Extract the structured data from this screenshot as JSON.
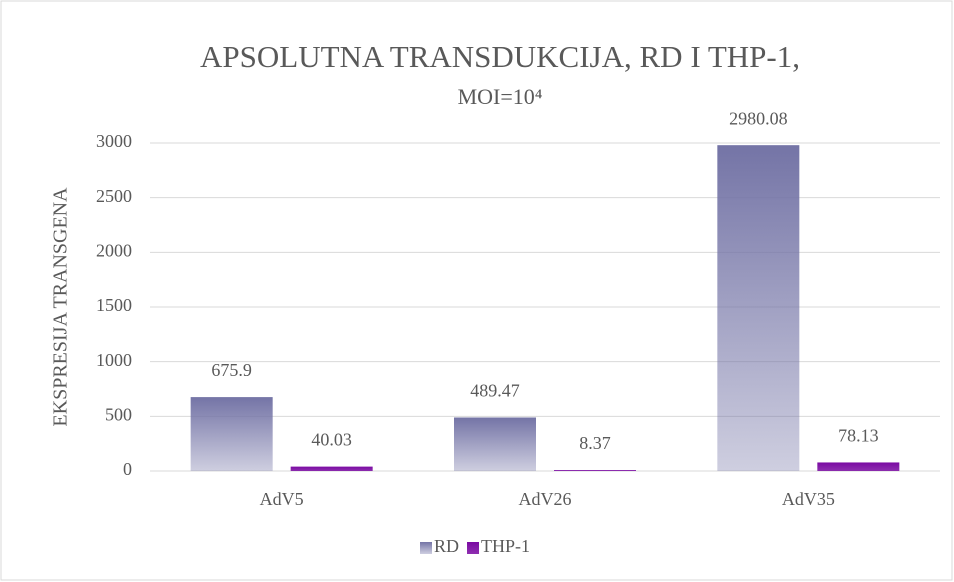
{
  "chart_data": {
    "type": "bar",
    "title": "APSOLUTNA TRANSDUKCIJA, RD I THP-1,",
    "subtitle": "MOI=10⁴",
    "y_label": "EKSPRESIJA TRANSGENA",
    "categories": [
      "AdV5",
      "AdV26",
      "AdV35"
    ],
    "series": [
      {
        "name": "RD",
        "color": "#7474a6",
        "values": [
          675.9,
          489.47,
          2980.08
        ]
      },
      {
        "name": "THP-1",
        "color": "#7a0aa2",
        "values": [
          40.03,
          8.37,
          78.13
        ]
      }
    ],
    "ylim": [
      0,
      3000
    ],
    "yticks": [
      0,
      500,
      1000,
      1500,
      2000,
      2500,
      3000
    ],
    "grid": true,
    "legend": "bottom"
  }
}
